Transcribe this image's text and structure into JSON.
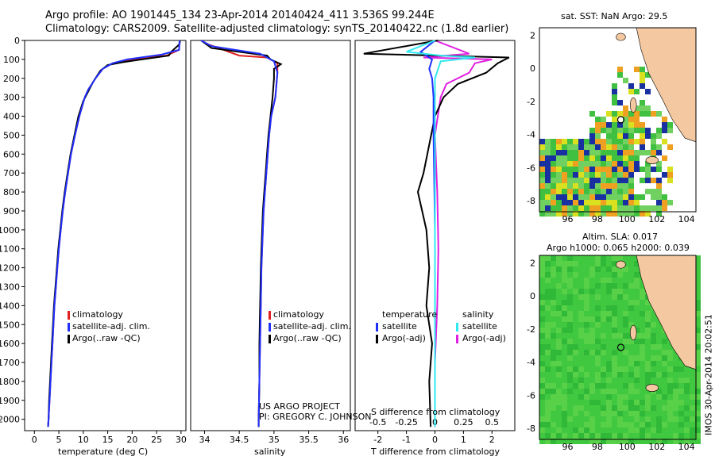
{
  "header": {
    "line1": "Argo profile: AO 1901445_134 23-Apr-2014 20140424_411 3.536S 99.244E",
    "line2": "Climatology: CARS2009. Satellite-adjusted climatology: synTS_20140422.nc (1.8d earlier)"
  },
  "colors": {
    "clim": "#e02020",
    "sat": "#2030ff",
    "argo": "#000000",
    "sal_sat": "#30e8f0",
    "sal_argo": "#e020e0",
    "land": "#f4c8a0"
  },
  "depth_ticks": [
    "0",
    "100",
    "200",
    "300",
    "400",
    "500",
    "600",
    "700",
    "800",
    "900",
    "1000",
    "1100",
    "1200",
    "1300",
    "1400",
    "1500",
    "1600",
    "1700",
    "1800",
    "1900",
    "2000"
  ],
  "panels": {
    "temp": {
      "xlabel": "temperature (deg C)",
      "xticks": [
        "0",
        "5",
        "10",
        "15",
        "20",
        "25",
        "30"
      ],
      "legend": [
        "climatology",
        "satellite-adj. clim.",
        "Argo(..raw -QC)"
      ]
    },
    "sal": {
      "xlabel": "salinity",
      "xticks": [
        "34",
        "34.5",
        "35",
        "35.5",
        "36"
      ],
      "legend": [
        "climatology",
        "satellite-adj. clim.",
        "Argo(..raw -QC)"
      ],
      "project1": "US ARGO PROJECT",
      "project2": "PI: GREGORY C. JOHNSON"
    },
    "diff": {
      "xlabel_top": "S difference from climatology",
      "xlabel_bottom": "T difference from climatology",
      "xticks_t": [
        "-2",
        "-1",
        "0",
        "1",
        "2"
      ],
      "xticks_s": [
        "-0.5",
        "-0.25",
        "0",
        "0.25",
        "0.5"
      ],
      "legend_t_title": "temperature",
      "legend_s_title": "salinity",
      "legend_t": [
        "satellite",
        "Argo(-adj)"
      ],
      "legend_s": [
        "satellite",
        "Argo(-adj)"
      ]
    }
  },
  "maps": {
    "top_title": "sat. SST: NaN Argo: 29.5",
    "bottom_title1": "Altim. SLA: 0.017",
    "bottom_title2": "Argo h1000: 0.065 h2000: 0.039",
    "xticks": [
      "96",
      "98",
      "100",
      "102",
      "104"
    ],
    "yticks": [
      "2",
      "0",
      "-2",
      "-4",
      "-6",
      "-8"
    ],
    "side_text": "IMOS 30-Apr-2014 20:02:51"
  },
  "chart_data": [
    {
      "type": "line",
      "xlabel": "temperature (deg C)",
      "ylabel": "",
      "xlim": [
        -2,
        31
      ],
      "ylim": [
        2060,
        0
      ],
      "series": [
        {
          "name": "climatology",
          "points": [
            [
              29.7,
              0
            ],
            [
              29.6,
              50
            ],
            [
              27,
              80
            ],
            [
              20,
              100
            ],
            [
              16,
              120
            ],
            [
              14,
              150
            ],
            [
              12.5,
              200
            ],
            [
              11,
              260
            ],
            [
              10.3,
              300
            ],
            [
              9.2,
              400
            ],
            [
              8.3,
              500
            ],
            [
              7.5,
              600
            ],
            [
              6.9,
              700
            ],
            [
              6.3,
              800
            ],
            [
              5.8,
              900
            ],
            [
              5.4,
              1000
            ],
            [
              5,
              1100
            ],
            [
              4.7,
              1200
            ],
            [
              4.4,
              1300
            ],
            [
              4.1,
              1400
            ],
            [
              3.9,
              1500
            ],
            [
              3.7,
              1600
            ],
            [
              3.5,
              1700
            ],
            [
              3.3,
              1800
            ],
            [
              3.1,
              1900
            ],
            [
              2.9,
              2000
            ],
            [
              2.8,
              2040
            ]
          ]
        },
        {
          "name": "satellite-adj. clim.",
          "points": [
            [
              29.7,
              0
            ],
            [
              29.6,
              50
            ],
            [
              26,
              75
            ],
            [
              19,
              100
            ],
            [
              16,
              120
            ],
            [
              14,
              150
            ],
            [
              12.5,
              200
            ],
            [
              11,
              260
            ],
            [
              10.3,
              300
            ],
            [
              9.2,
              400
            ],
            [
              8.3,
              500
            ],
            [
              7.5,
              600
            ],
            [
              6.9,
              700
            ],
            [
              6.3,
              800
            ],
            [
              5.8,
              900
            ],
            [
              5.4,
              1000
            ],
            [
              5,
              1100
            ],
            [
              4.7,
              1200
            ],
            [
              4.4,
              1300
            ],
            [
              4.1,
              1400
            ],
            [
              3.9,
              1500
            ],
            [
              3.7,
              1600
            ],
            [
              3.5,
              1700
            ],
            [
              3.3,
              1800
            ],
            [
              3.1,
              1900
            ],
            [
              2.9,
              2000
            ],
            [
              2.8,
              2040
            ]
          ]
        },
        {
          "name": "Argo(..raw -QC)",
          "points": [
            [
              29.8,
              0
            ],
            [
              29.7,
              20
            ],
            [
              28,
              60
            ],
            [
              27.5,
              80
            ],
            [
              22,
              100
            ],
            [
              18,
              115
            ],
            [
              15,
              130
            ],
            [
              13.5,
              160
            ],
            [
              12,
              220
            ],
            [
              10.8,
              280
            ],
            [
              10,
              320
            ],
            [
              9,
              400
            ],
            [
              8.2,
              500
            ],
            [
              7.4,
              600
            ],
            [
              6.8,
              700
            ],
            [
              6.2,
              800
            ],
            [
              5.7,
              900
            ],
            [
              5.3,
              1000
            ],
            [
              4.9,
              1100
            ],
            [
              4.6,
              1200
            ],
            [
              4.3,
              1300
            ],
            [
              4.0,
              1400
            ],
            [
              3.8,
              1500
            ],
            [
              3.6,
              1600
            ],
            [
              3.4,
              1700
            ],
            [
              3.2,
              1800
            ],
            [
              3.0,
              1900
            ],
            [
              2.9,
              2000
            ],
            [
              2.8,
              2040
            ]
          ]
        }
      ]
    },
    {
      "type": "line",
      "xlabel": "salinity",
      "ylabel": "",
      "xlim": [
        33.8,
        36.1
      ],
      "ylim": [
        2060,
        0
      ],
      "series": [
        {
          "name": "climatology",
          "points": [
            [
              33.95,
              0
            ],
            [
              34.05,
              20
            ],
            [
              34.5,
              80
            ],
            [
              34.9,
              90
            ],
            [
              35.05,
              120
            ],
            [
              35.05,
              170
            ],
            [
              35.02,
              300
            ],
            [
              34.96,
              400
            ],
            [
              34.93,
              500
            ],
            [
              34.91,
              600
            ],
            [
              34.89,
              700
            ],
            [
              34.87,
              800
            ],
            [
              34.85,
              900
            ],
            [
              34.84,
              1000
            ],
            [
              34.83,
              1100
            ],
            [
              34.82,
              1200
            ],
            [
              34.81,
              1400
            ],
            [
              34.8,
              1600
            ],
            [
              34.79,
              1800
            ],
            [
              34.78,
              2000
            ],
            [
              34.78,
              2040
            ]
          ]
        },
        {
          "name": "satellite-adj. clim.",
          "points": [
            [
              33.95,
              0
            ],
            [
              34.1,
              30
            ],
            [
              34.8,
              70
            ],
            [
              35.0,
              110
            ],
            [
              35.05,
              170
            ],
            [
              35.02,
              300
            ],
            [
              34.96,
              400
            ],
            [
              34.93,
              500
            ],
            [
              34.91,
              600
            ],
            [
              34.89,
              700
            ],
            [
              34.87,
              800
            ],
            [
              34.85,
              900
            ],
            [
              34.84,
              1000
            ],
            [
              34.83,
              1100
            ],
            [
              34.82,
              1200
            ],
            [
              34.81,
              1400
            ],
            [
              34.8,
              1600
            ],
            [
              34.79,
              1800
            ],
            [
              34.78,
              2000
            ],
            [
              34.78,
              2040
            ]
          ]
        },
        {
          "name": "Argo(..raw -QC)",
          "points": [
            [
              33.95,
              0
            ],
            [
              34.1,
              40
            ],
            [
              34.9,
              80
            ],
            [
              34.95,
              100
            ],
            [
              35.1,
              125
            ],
            [
              35.0,
              150
            ],
            [
              35.0,
              200
            ],
            [
              34.98,
              300
            ],
            [
              34.95,
              400
            ],
            [
              34.92,
              500
            ],
            [
              34.9,
              600
            ],
            [
              34.88,
              700
            ],
            [
              34.86,
              800
            ],
            [
              34.84,
              900
            ],
            [
              34.83,
              1000
            ],
            [
              34.82,
              1100
            ],
            [
              34.81,
              1200
            ],
            [
              34.8,
              1400
            ],
            [
              34.79,
              1600
            ],
            [
              34.79,
              1800
            ],
            [
              34.78,
              2000
            ],
            [
              34.78,
              2040
            ]
          ]
        }
      ]
    },
    {
      "type": "line",
      "xlabel": "T difference from climatology",
      "ylabel": "",
      "xlim": [
        -2.8,
        2.8
      ],
      "ylim": [
        2060,
        0
      ],
      "series": [
        {
          "name": "temperature satellite",
          "points": [
            [
              0,
              0
            ],
            [
              -0.5,
              60
            ],
            [
              -0.3,
              80
            ],
            [
              -0.1,
              100
            ],
            [
              -0.2,
              150
            ],
            [
              -0.1,
              200
            ],
            [
              -0.05,
              300
            ],
            [
              -0.05,
              500
            ],
            [
              0,
              1000
            ],
            [
              0,
              1500
            ],
            [
              0,
              2040
            ]
          ]
        },
        {
          "name": "temperature Argo(-adj)",
          "points": [
            [
              0.1,
              0
            ],
            [
              -2.5,
              70
            ],
            [
              2.6,
              90
            ],
            [
              2.2,
              120
            ],
            [
              1.8,
              170
            ],
            [
              0.8,
              230
            ],
            [
              0.3,
              300
            ],
            [
              0,
              400
            ],
            [
              -0.2,
              550
            ],
            [
              -0.4,
              700
            ],
            [
              -0.6,
              800
            ],
            [
              -0.3,
              1000
            ],
            [
              -0.2,
              1200
            ],
            [
              -0.3,
              1400
            ],
            [
              -0.1,
              1600
            ],
            [
              -0.2,
              1800
            ],
            [
              -0.15,
              2040
            ]
          ]
        }
      ]
    },
    {
      "type": "line",
      "xlabel": "S difference from climatology",
      "ylabel": "",
      "xlim": [
        -0.7,
        0.7
      ],
      "ylim": [
        2060,
        0
      ],
      "series": [
        {
          "name": "salinity satellite",
          "points": [
            [
              0,
              0
            ],
            [
              -0.25,
              60
            ],
            [
              0.05,
              80
            ],
            [
              0.35,
              90
            ],
            [
              0.05,
              110
            ],
            [
              0,
              200
            ],
            [
              0,
              500
            ],
            [
              0,
              1000
            ],
            [
              0,
              1500
            ],
            [
              0,
              2040
            ]
          ]
        },
        {
          "name": "salinity Argo(-adj)",
          "points": [
            [
              0,
              0
            ],
            [
              0.3,
              70
            ],
            [
              -0.1,
              90
            ],
            [
              0.5,
              100
            ],
            [
              0.35,
              120
            ],
            [
              0.3,
              170
            ],
            [
              0.1,
              230
            ],
            [
              0.05,
              300
            ],
            [
              0,
              500
            ],
            [
              0.02,
              800
            ],
            [
              0.03,
              1100
            ],
            [
              0.02,
              1400
            ],
            [
              0,
              1700
            ],
            [
              0,
              2040
            ]
          ]
        }
      ]
    }
  ]
}
